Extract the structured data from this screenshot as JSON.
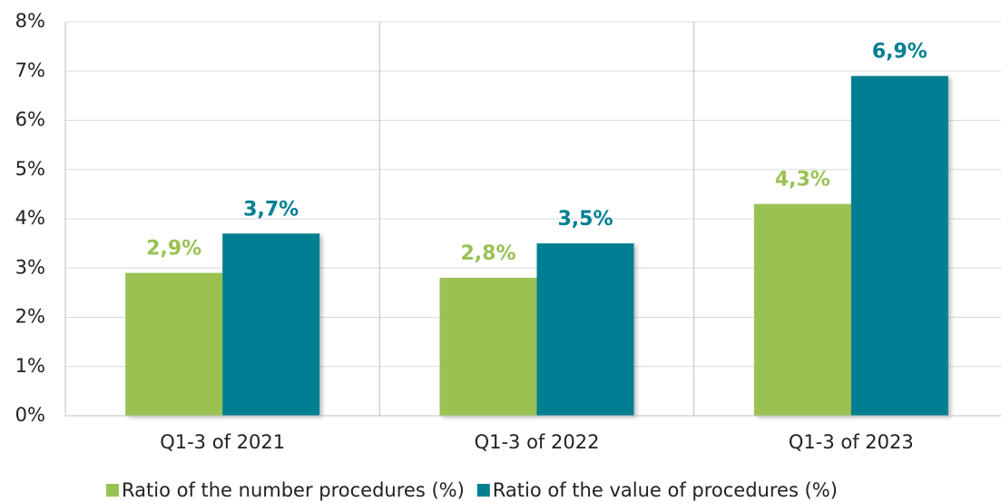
{
  "chart_data": {
    "type": "bar",
    "categories": [
      "Q1-3 of 2021",
      "Q1-3 of 2022",
      "Q1-3 of 2023"
    ],
    "series": [
      {
        "name": "Ratio of the number procedures (%)",
        "color": "#9bc153",
        "values": [
          2.9,
          2.8,
          4.3
        ],
        "value_labels": [
          "2,9%",
          "2,8%",
          "4,3%"
        ]
      },
      {
        "name": "Ratio of the value of procedures (%)",
        "color": "#007f92",
        "values": [
          3.7,
          3.5,
          6.9
        ],
        "value_labels": [
          "3,7%",
          "3,5%",
          "6,9%"
        ]
      }
    ],
    "ylim": [
      0,
      8
    ],
    "yticks": [
      {
        "value": 0,
        "label": "0%"
      },
      {
        "value": 1,
        "label": "1%"
      },
      {
        "value": 2,
        "label": "2%"
      },
      {
        "value": 3,
        "label": "3%"
      },
      {
        "value": 4,
        "label": "4%"
      },
      {
        "value": 5,
        "label": "5%"
      },
      {
        "value": 6,
        "label": "6%"
      },
      {
        "value": 7,
        "label": "7%"
      },
      {
        "value": 8,
        "label": "8%"
      }
    ],
    "grid": true,
    "legend": "bottom"
  }
}
